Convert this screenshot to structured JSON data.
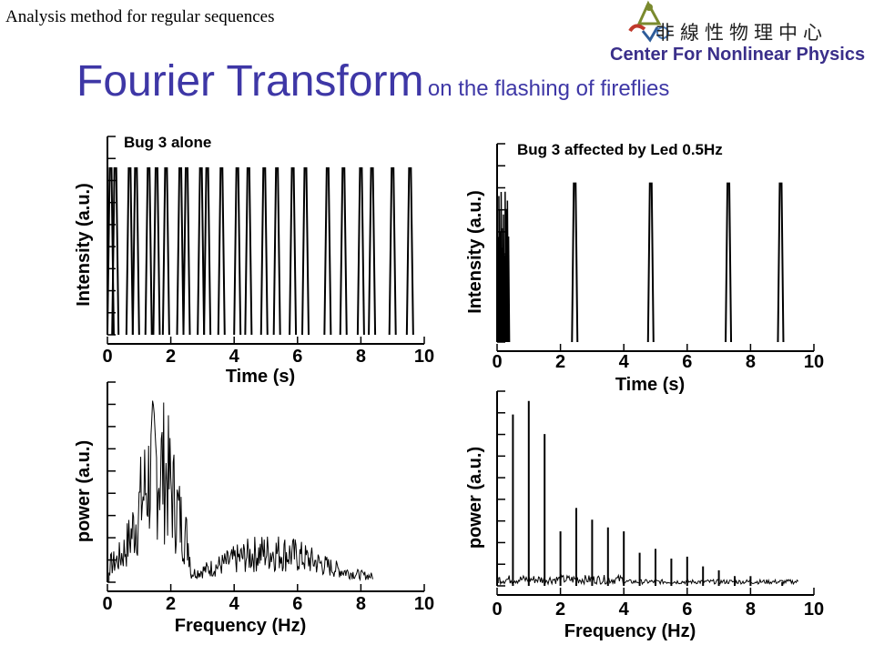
{
  "header": {
    "subtitle": "Analysis method for regular sequences",
    "logo_chinese": "非線性物理中心",
    "logo_english": "Center For Nonlinear Physics",
    "logo_icon": "cnp-logo-icon"
  },
  "slide": {
    "title": "Fourier Transform",
    "title_suffix": "on the flashing of fireflies"
  },
  "chart_data": [
    {
      "type": "line",
      "title": "Bug 3 alone",
      "xlabel": "Time (s)",
      "ylabel": "Intensity (a.u.)",
      "xlim": [
        0,
        10
      ],
      "xticks": [
        "0",
        "2",
        "4",
        "6",
        "8",
        "10"
      ],
      "peaks_x": [
        0.1,
        0.25,
        0.7,
        0.9,
        1.3,
        1.55,
        1.85,
        2.3,
        2.5,
        2.95,
        3.15,
        3.6,
        4.1,
        4.45,
        4.95,
        5.35,
        5.85,
        6.25,
        6.95,
        7.45,
        8.0,
        8.35,
        9.0,
        9.55
      ],
      "color": "#000000"
    },
    {
      "type": "line",
      "title": "Bug 3 affected by Led 0.5Hz",
      "xlabel": "Time (s)",
      "ylabel": "Intensity (a.u.)",
      "xlim": [
        0,
        10
      ],
      "xticks": [
        "0",
        "2",
        "4",
        "6",
        "8",
        "10"
      ],
      "peaks_x": [
        2.45,
        4.85,
        7.3,
        8.95
      ],
      "color": "#000000"
    },
    {
      "type": "line",
      "title": "",
      "xlabel": "Frequency (Hz)",
      "ylabel": "power (a.u.)",
      "xlim": [
        0,
        10
      ],
      "xticks": [
        "0",
        "2",
        "4",
        "6",
        "8",
        "10"
      ],
      "spectrum_extent_x": 8.4,
      "peak_x": 1.6,
      "color": "#000000"
    },
    {
      "type": "bar",
      "title": "",
      "xlabel": "Frequency (Hz)",
      "ylabel": "power (a.u.)",
      "xlim": [
        0,
        10
      ],
      "xticks": [
        "0",
        "2",
        "4",
        "6",
        "8",
        "10"
      ],
      "x": [
        0.5,
        1.0,
        1.5,
        2.0,
        2.5,
        3.0,
        3.5,
        4.0,
        4.5,
        5.0,
        5.5,
        6.0,
        6.5,
        7.0,
        7.5,
        8.0,
        9.0
      ],
      "values": [
        0.88,
        0.95,
        0.78,
        0.28,
        0.4,
        0.34,
        0.3,
        0.28,
        0.17,
        0.19,
        0.14,
        0.15,
        0.1,
        0.08,
        0.05,
        0.05,
        0.02
      ],
      "color": "#000000"
    }
  ]
}
